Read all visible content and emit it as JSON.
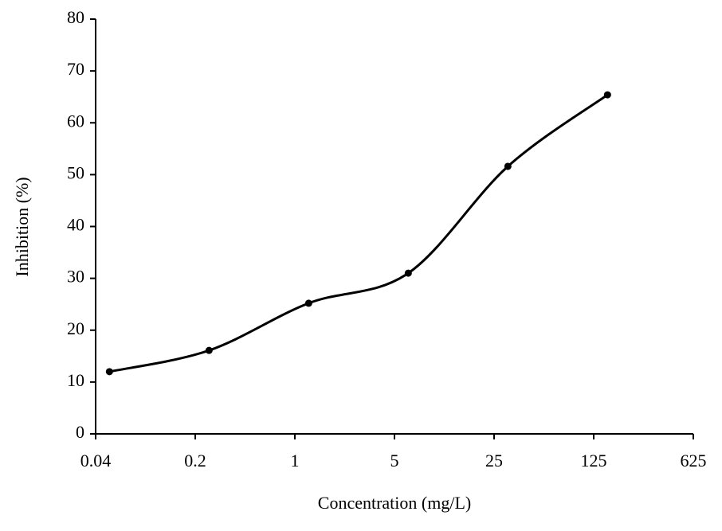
{
  "chart_data": {
    "type": "line",
    "x_label": "Concentration (mg/L)",
    "y_label": "Inhibition (%)",
    "x": [
      0.05,
      0.25,
      1.25,
      6.25,
      31.25,
      156.25
    ],
    "series": [
      {
        "color": "#000000",
        "values": [
          12,
          16.1,
          25.2,
          31,
          51.6,
          65.4
        ]
      }
    ],
    "xscale": "log",
    "xlim": [
      0.04,
      625
    ],
    "xticks": [
      0.04,
      0.2,
      1,
      5,
      25,
      125,
      625
    ],
    "ylim": [
      0,
      80
    ],
    "yticks": [
      0,
      10,
      20,
      30,
      40,
      50,
      60,
      70,
      80
    ],
    "smooth": true,
    "markers": true
  }
}
